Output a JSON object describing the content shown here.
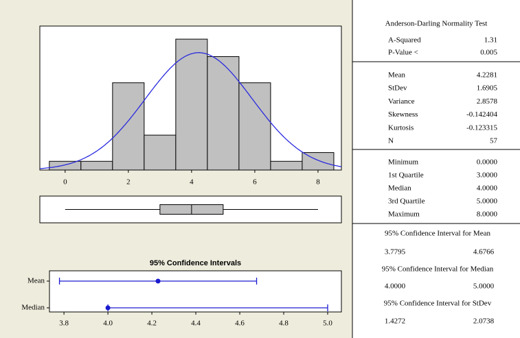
{
  "chart_data": [
    {
      "type": "histogram",
      "bins": [
        -0.5,
        0.5,
        1.5,
        2.5,
        3.5,
        4.5,
        5.5,
        6.5,
        7.5,
        8.5
      ],
      "counts": [
        1,
        1,
        10,
        4,
        15,
        13,
        10,
        1,
        2
      ],
      "color": "#c0c0c0",
      "curve_color": "#2a2ae0",
      "fit": {
        "mean": 4.2281,
        "stdev": 1.6905
      },
      "xlim": [
        -0.8,
        8.74
      ],
      "xticks": [
        0,
        2,
        4,
        6,
        8
      ],
      "ylim": [
        0,
        16.5
      ]
    },
    {
      "type": "boxplot",
      "min": 0,
      "q1": 3,
      "median": 4,
      "q3": 5,
      "max": 8,
      "color": "#c0c0c0",
      "xlim": [
        -0.8,
        8.74
      ]
    },
    {
      "type": "interval",
      "title": "95% Confidence Intervals",
      "categories": [
        "Mean",
        "Median"
      ],
      "estimates": [
        4.2281,
        4.0
      ],
      "lower": [
        3.7795,
        4.0
      ],
      "upper": [
        4.6766,
        5.0
      ],
      "color": "#1a1ad0",
      "xlim": [
        3.734,
        5.0625
      ],
      "xticks": [
        3.8,
        {
          "value": 4,
          "label": "4.0"
        },
        4.2,
        4.4,
        4.6,
        4.8,
        {
          "value": 5,
          "label": "5.0"
        }
      ]
    }
  ],
  "summary": {
    "test_title": "Anderson-Darling Normality Test",
    "test": [
      [
        "A-Squared",
        "1.31"
      ],
      [
        "P-Value <",
        "0.005"
      ]
    ],
    "descriptive": [
      [
        "Mean",
        "4.2281"
      ],
      [
        "StDev",
        "1.6905"
      ],
      [
        "Variance",
        "2.8578"
      ],
      [
        "Skewness",
        "-0.142404"
      ],
      [
        "Kurtosis",
        "-0.123315"
      ],
      [
        "N",
        "57"
      ]
    ],
    "quartiles": [
      [
        "Minimum",
        "0.0000"
      ],
      [
        "1st Quartile",
        "3.0000"
      ],
      [
        "Median",
        "4.0000"
      ],
      [
        "3rd Quartile",
        "5.0000"
      ],
      [
        "Maximum",
        "8.0000"
      ]
    ],
    "intervals": [
      {
        "title": "95% Confidence Interval for Mean",
        "lower": "3.7795",
        "upper": "4.6766"
      },
      {
        "title": "95% Confidence Interval for Median",
        "lower": "4.0000",
        "upper": "5.0000"
      },
      {
        "title": "95% Confidence Interval for StDev",
        "lower": "1.4272",
        "upper": "2.0738"
      }
    ]
  }
}
